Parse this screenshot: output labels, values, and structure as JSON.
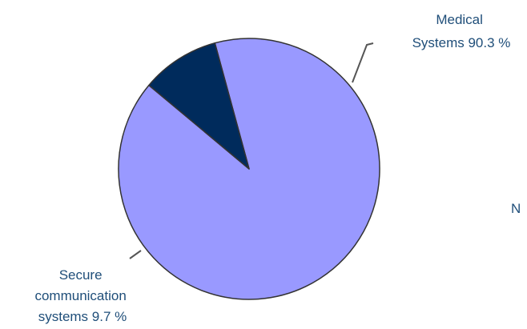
{
  "chart_data": {
    "type": "pie",
    "slices": [
      {
        "label_lines": [
          "Medical",
          "Systems 90.3 %"
        ],
        "value": 90.3,
        "color": "#9999ff"
      },
      {
        "label_lines": [
          "Secure",
          "communication",
          "systems 9.7 %"
        ],
        "value": 9.7,
        "color": "#002b5c"
      }
    ],
    "truncated_edge_label": "N",
    "colors": {
      "label_text": "#1f4e79",
      "outline": "#333333",
      "leader_line": "#555555"
    }
  }
}
